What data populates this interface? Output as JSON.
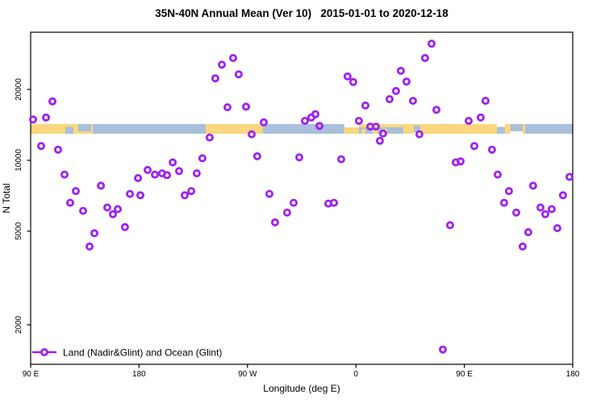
{
  "window": {
    "background": "#ffffff"
  },
  "chart_data": {
    "type": "scatter",
    "title": "35N-40N Annual Mean (Ver 10)   2015-01-01 to 2020-12-18",
    "xlabel": "Longitude (deg E)",
    "ylabel": "N Total",
    "legend": {
      "label": "Land (Nadir&Glint) and Ocean (Glint)",
      "position": "bottom-left"
    },
    "marker": {
      "shape": "open-circle",
      "color": "#A020F0",
      "radius": 3.6,
      "ring_width": 2.8
    },
    "x_axis": {
      "note": "axis spans 450 degrees eastward starting at 90E and wrapping past 180 to 180 again",
      "ticks_deg": [
        0,
        90,
        180,
        270,
        360,
        450
      ],
      "tick_labels": [
        "90 E",
        "180",
        "90 W",
        "0",
        "90 E",
        "180"
      ],
      "range_deg": [
        0,
        450
      ]
    },
    "y_axis": {
      "scale": "log10",
      "ticks": [
        2000,
        5000,
        10000,
        20000
      ],
      "tick_labels": [
        "2000",
        "5000",
        "10000",
        "20000"
      ],
      "range": [
        1360,
        35500
      ]
    },
    "grid": "off",
    "map_band": {
      "description": "horizontal strip showing 35N-40N land/ocean map across the longitude axis",
      "land_color": "#FAD77B",
      "ocean_color": "#A9BFDA",
      "n_range": [
        12970,
        14260
      ],
      "segments": [
        {
          "l0": 0,
          "l1": 51.6,
          "c": "land",
          "t": 0,
          "b": 1
        },
        {
          "l0": 28.8,
          "l1": 35.5,
          "c": "ocean",
          "t": 0.3,
          "b": 1
        },
        {
          "l0": 39.5,
          "l1": 50.2,
          "c": "ocean",
          "t": 0,
          "b": 0.75
        },
        {
          "l0": 51.6,
          "l1": 145.3,
          "c": "ocean",
          "t": 0,
          "b": 1
        },
        {
          "l0": 145.3,
          "l1": 192.8,
          "c": "land",
          "t": 0,
          "b": 1
        },
        {
          "l0": 192.8,
          "l1": 260.4,
          "c": "ocean",
          "t": 0,
          "b": 1
        },
        {
          "l0": 260.4,
          "l1": 272.5,
          "c": "land",
          "t": 0.35,
          "b": 1
        },
        {
          "l0": 272.5,
          "l1": 324.8,
          "c": "land",
          "t": 0,
          "b": 0.33
        },
        {
          "l0": 272.5,
          "l1": 309.4,
          "c": "ocean",
          "t": 0.33,
          "b": 1
        },
        {
          "l0": 274.5,
          "l1": 277.9,
          "c": "land",
          "t": 0.5,
          "b": 1
        },
        {
          "l0": 284.0,
          "l1": 288.0,
          "c": "land",
          "t": 0.5,
          "b": 1
        },
        {
          "l0": 292.0,
          "l1": 296.0,
          "c": "land",
          "t": 0.5,
          "b": 1
        },
        {
          "l0": 309.4,
          "l1": 318.1,
          "c": "land",
          "t": 0,
          "b": 1
        },
        {
          "l0": 318.1,
          "l1": 323.4,
          "c": "ocean",
          "t": 0.15,
          "b": 0.85
        },
        {
          "l0": 323.4,
          "l1": 387.0,
          "c": "land",
          "t": 0,
          "b": 1
        },
        {
          "l0": 387.0,
          "l1": 393.7,
          "c": "ocean",
          "t": 0.3,
          "b": 1
        },
        {
          "l0": 393.7,
          "l1": 398.4,
          "c": "land",
          "t": 0,
          "b": 1
        },
        {
          "l0": 398.4,
          "l1": 408.4,
          "c": "ocean",
          "t": 0,
          "b": 0.75
        },
        {
          "l0": 408.4,
          "l1": 410.4,
          "c": "land",
          "t": 0,
          "b": 1
        },
        {
          "l0": 410.4,
          "l1": 450,
          "c": "ocean",
          "t": 0,
          "b": 1
        }
      ]
    },
    "points_format": "[degrees_east_of_90E_along_axis, N_total]",
    "points": [
      [
        18.1,
        17800
      ],
      [
        12.7,
        15200
      ],
      [
        2.0,
        14900
      ],
      [
        8.7,
        11500
      ],
      [
        22.8,
        11100
      ],
      [
        28.1,
        8700
      ],
      [
        37.5,
        7400
      ],
      [
        58.3,
        7800
      ],
      [
        89.1,
        8400
      ],
      [
        97.1,
        9100
      ],
      [
        103.1,
        8700
      ],
      [
        109.1,
        8800
      ],
      [
        113.2,
        8650
      ],
      [
        82.4,
        7200
      ],
      [
        91.1,
        7100
      ],
      [
        32.8,
        6600
      ],
      [
        43.5,
        6100
      ],
      [
        63.6,
        6300
      ],
      [
        68.3,
        5900
      ],
      [
        72.3,
        6200
      ],
      [
        52.9,
        4900
      ],
      [
        78.3,
        5200
      ],
      [
        48.9,
        4300
      ],
      [
        168.1,
        27200
      ],
      [
        158.7,
        25500
      ],
      [
        172.7,
        23200
      ],
      [
        153.3,
        22300
      ],
      [
        163.4,
        16800
      ],
      [
        178.8,
        16900
      ],
      [
        193.5,
        14500
      ],
      [
        227.7,
        14700
      ],
      [
        183.5,
        12900
      ],
      [
        148.6,
        12500
      ],
      [
        142.6,
        10200
      ],
      [
        188.1,
        10400
      ],
      [
        223.0,
        10300
      ],
      [
        117.9,
        9800
      ],
      [
        123.2,
        9000
      ],
      [
        137.9,
        8800
      ],
      [
        133.3,
        7400
      ],
      [
        127.9,
        7100
      ],
      [
        198.2,
        7200
      ],
      [
        218.3,
        6600
      ],
      [
        202.9,
        5450
      ],
      [
        212.9,
        6000
      ],
      [
        332.8,
        31300
      ],
      [
        327.4,
        27200
      ],
      [
        307.3,
        24000
      ],
      [
        263.1,
        22700
      ],
      [
        267.8,
        21500
      ],
      [
        312.0,
        21600
      ],
      [
        303.3,
        19700
      ],
      [
        297.9,
        18200
      ],
      [
        317.4,
        17900
      ],
      [
        336.8,
        16400
      ],
      [
        277.9,
        17100
      ],
      [
        272.5,
        14700
      ],
      [
        236.4,
        15700
      ],
      [
        233.0,
        15200
      ],
      [
        239.7,
        14000
      ],
      [
        281.9,
        13900
      ],
      [
        286.6,
        13900
      ],
      [
        292.6,
        13000
      ],
      [
        289.9,
        12100
      ],
      [
        322.7,
        12900
      ],
      [
        257.8,
        10100
      ],
      [
        247.1,
        6550
      ],
      [
        251.8,
        6600
      ],
      [
        377.6,
        17900
      ],
      [
        373.6,
        15200
      ],
      [
        363.6,
        14700
      ],
      [
        368.3,
        11500
      ],
      [
        383.0,
        11100
      ],
      [
        352.9,
        9800
      ],
      [
        356.9,
        9900
      ],
      [
        387.7,
        8700
      ],
      [
        397.0,
        7400
      ],
      [
        417.1,
        7800
      ],
      [
        447.3,
        8500
      ],
      [
        441.9,
        7100
      ],
      [
        393.0,
        6600
      ],
      [
        403.1,
        6000
      ],
      [
        423.2,
        6300
      ],
      [
        427.2,
        5900
      ],
      [
        432.5,
        6200
      ],
      [
        348.2,
        5300
      ],
      [
        413.1,
        4950
      ],
      [
        437.2,
        5150
      ],
      [
        408.4,
        4300
      ],
      [
        342.2,
        1570
      ]
    ]
  },
  "colors": {
    "marker": "#A020F0",
    "land": "#FAD77B",
    "ocean": "#A9BFDA",
    "axis": "#000000"
  }
}
